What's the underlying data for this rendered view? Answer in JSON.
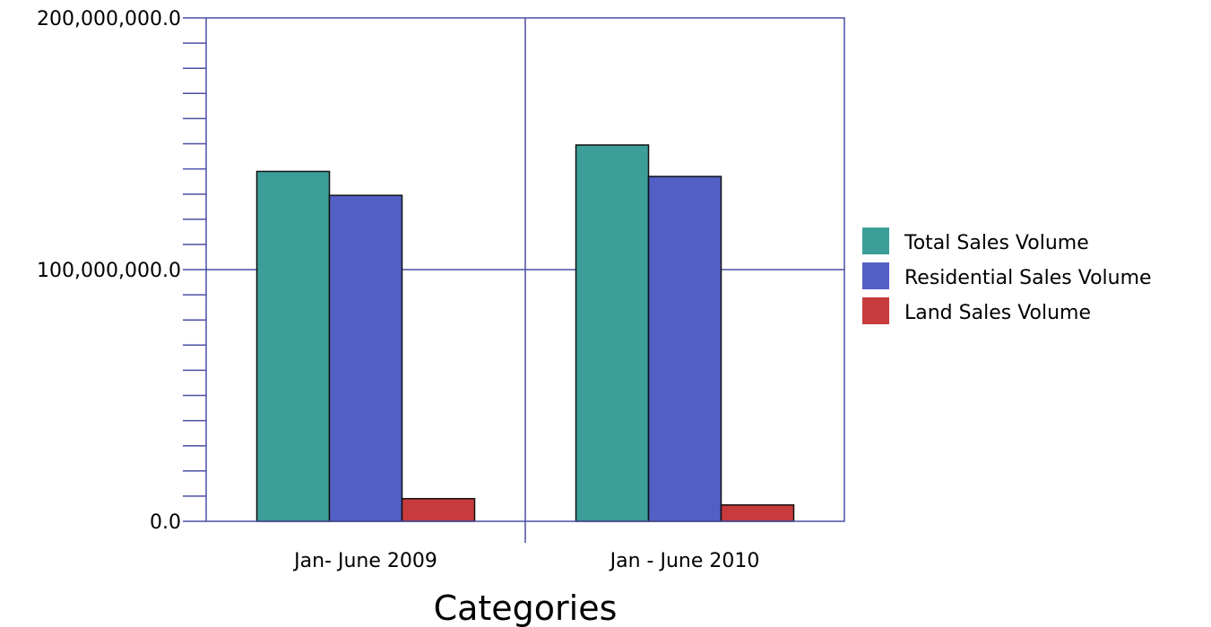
{
  "chart_data": {
    "type": "bar",
    "title": "",
    "xlabel": "Categories",
    "ylabel": "",
    "categories": [
      "Jan- June 2009",
      "Jan - June 2010"
    ],
    "ylim": [
      0,
      200000000
    ],
    "yticks": [
      {
        "value": 0,
        "label": "0.0"
      },
      {
        "value": 100000000,
        "label": "100,000,000.0"
      },
      {
        "value": 200000000,
        "label": "200,000,000.0"
      }
    ],
    "minor_tick_step": 10000000,
    "series": [
      {
        "name": "Total Sales Volume",
        "color": "#3d9e99",
        "values": [
          139000000,
          149500000
        ]
      },
      {
        "name": "Residential Sales Volume",
        "color": "#525fc5",
        "values": [
          129500000,
          137000000
        ]
      },
      {
        "name": "Land Sales Volume",
        "color": "#c73b3d",
        "values": [
          9000000,
          6500000
        ]
      }
    ],
    "grid": true,
    "legend_position": "right",
    "axis_color": "#4a4fa3"
  }
}
